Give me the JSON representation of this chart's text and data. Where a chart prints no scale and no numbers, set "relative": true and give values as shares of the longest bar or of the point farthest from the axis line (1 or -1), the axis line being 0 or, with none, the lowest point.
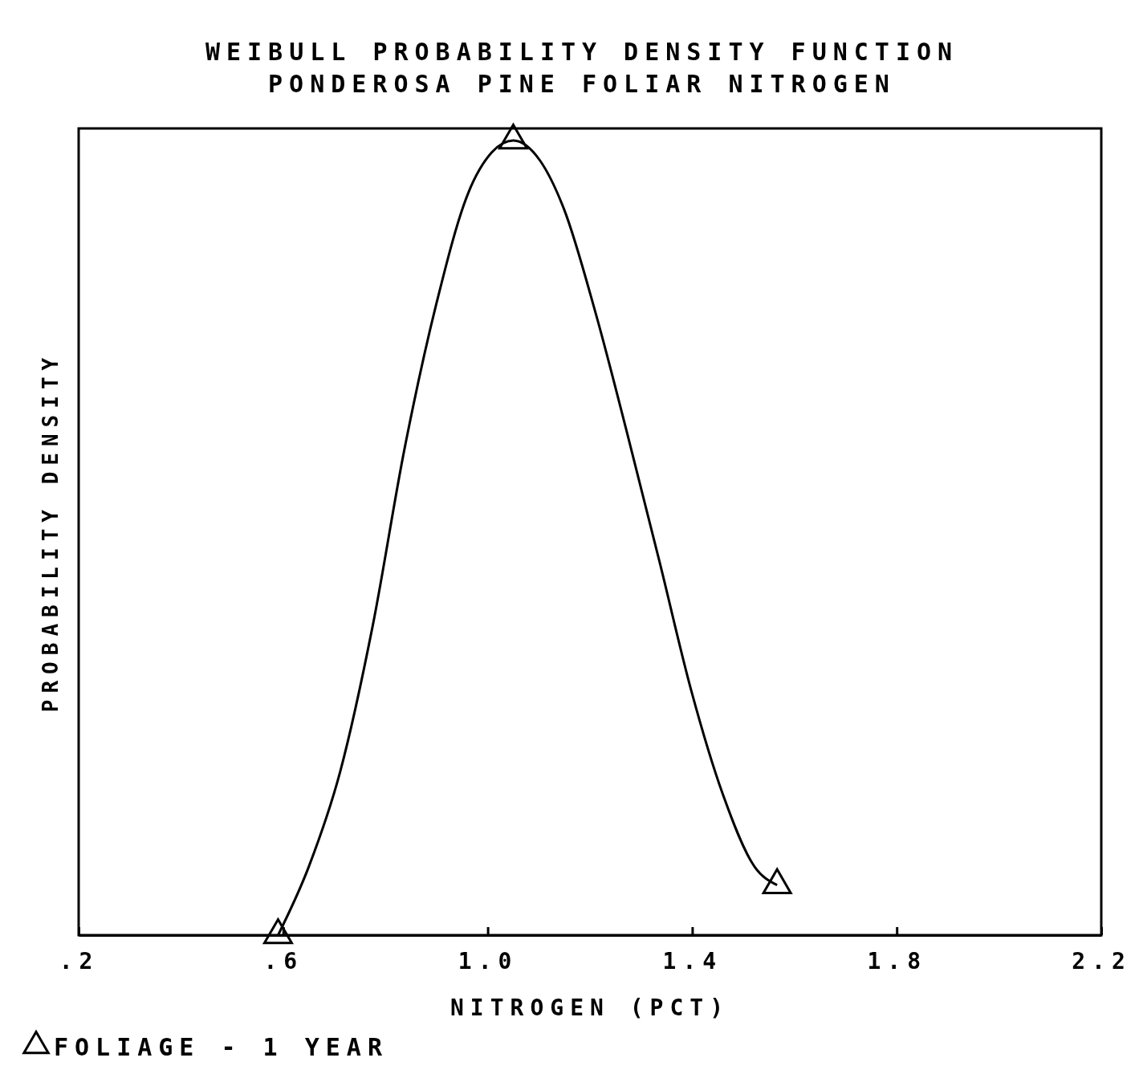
{
  "chart_data": {
    "type": "line",
    "title": "WEIBULL PROBABILITY DENSITY FUNCTION",
    "subtitle": "PONDEROSA PINE FOLIAR NITROGEN",
    "xlabel": "NITROGEN (PCT)",
    "ylabel": "PROBABILITY DENSITY",
    "relative": true,
    "xlim": [
      0.2,
      2.2
    ],
    "xticks": [
      {
        "value": 0.2,
        "label": ".2"
      },
      {
        "value": 0.6,
        "label": ".6"
      },
      {
        "value": 1.0,
        "label": "1.0"
      },
      {
        "value": 1.4,
        "label": "1.4"
      },
      {
        "value": 1.8,
        "label": "1.8"
      },
      {
        "value": 2.2,
        "label": "2.2"
      }
    ],
    "legend": "bottom left",
    "grid": false,
    "series": [
      {
        "color": "#000000",
        "marker": "none",
        "x": [
          0.59,
          0.65,
          0.712,
          0.775,
          0.837,
          0.899,
          0.962,
          1.008,
          1.05,
          1.102,
          1.149,
          1.211,
          1.273,
          1.336,
          1.398,
          1.46,
          1.522,
          1.566
        ],
        "values": [
          0,
          0.086,
          0.207,
          0.389,
          0.611,
          0.793,
          0.934,
          0.985,
          1.0,
          0.975,
          0.914,
          0.783,
          0.631,
          0.47,
          0.308,
          0.177,
          0.086,
          0.063
        ]
      },
      {
        "type": "scatter",
        "name": "FOLIAGE - 1 YEAR",
        "color": "#000000",
        "marker": "triangle",
        "x": [
          0.59,
          1.05,
          1.566
        ],
        "values": [
          0,
          1.0,
          0.063
        ]
      }
    ]
  }
}
